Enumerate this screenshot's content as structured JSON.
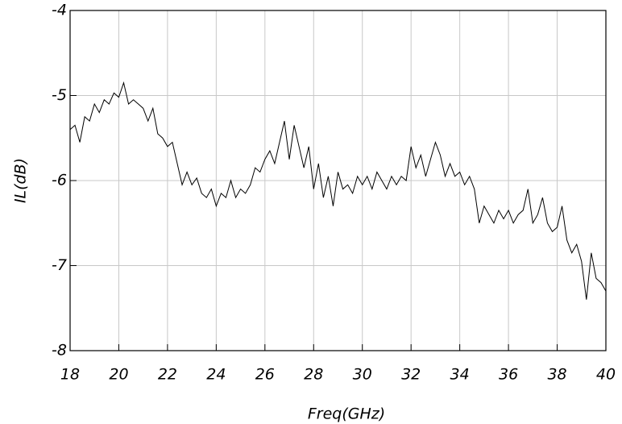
{
  "chart_data": {
    "type": "line",
    "xlabel": "Freq(GHz)",
    "ylabel": "IL(dB)",
    "xlim": [
      18,
      40
    ],
    "xticks": [
      18,
      20,
      22,
      24,
      26,
      28,
      30,
      32,
      34,
      36,
      38,
      40
    ],
    "ylim": [
      -8,
      -4
    ],
    "yticks": [
      -8,
      -7,
      -6,
      -5,
      -4
    ],
    "grid": true,
    "x": [
      18.0,
      18.2,
      18.4,
      18.6,
      18.8,
      19.0,
      19.2,
      19.4,
      19.6,
      19.8,
      20.0,
      20.2,
      20.4,
      20.6,
      20.8,
      21.0,
      21.2,
      21.4,
      21.6,
      21.8,
      22.0,
      22.2,
      22.4,
      22.6,
      22.8,
      23.0,
      23.2,
      23.4,
      23.6,
      23.8,
      24.0,
      24.2,
      24.4,
      24.6,
      24.8,
      25.0,
      25.2,
      25.4,
      25.6,
      25.8,
      26.0,
      26.2,
      26.4,
      26.6,
      26.8,
      27.0,
      27.2,
      27.4,
      27.6,
      27.8,
      28.0,
      28.2,
      28.4,
      28.6,
      28.8,
      29.0,
      29.2,
      29.4,
      29.6,
      29.8,
      30.0,
      30.2,
      30.4,
      30.6,
      30.8,
      31.0,
      31.2,
      31.4,
      31.6,
      31.8,
      32.0,
      32.2,
      32.4,
      32.6,
      32.8,
      33.0,
      33.2,
      33.4,
      33.6,
      33.8,
      34.0,
      34.2,
      34.4,
      34.6,
      34.8,
      35.0,
      35.2,
      35.4,
      35.6,
      35.8,
      36.0,
      36.2,
      36.4,
      36.6,
      36.8,
      37.0,
      37.2,
      37.4,
      37.6,
      37.8,
      38.0,
      38.2,
      38.4,
      38.6,
      38.8,
      39.0,
      39.2,
      39.4,
      39.6,
      39.8,
      40.0
    ],
    "series": [
      {
        "color": "#000000",
        "values": [
          -5.4,
          -5.35,
          -5.55,
          -5.25,
          -5.3,
          -5.1,
          -5.2,
          -5.05,
          -5.1,
          -4.97,
          -5.02,
          -4.85,
          -5.1,
          -5.05,
          -5.1,
          -5.15,
          -5.3,
          -5.15,
          -5.45,
          -5.5,
          -5.6,
          -5.55,
          -5.8,
          -6.05,
          -5.9,
          -6.05,
          -5.97,
          -6.15,
          -6.2,
          -6.1,
          -6.3,
          -6.15,
          -6.2,
          -6.0,
          -6.2,
          -6.1,
          -6.15,
          -6.05,
          -5.85,
          -5.9,
          -5.75,
          -5.65,
          -5.8,
          -5.55,
          -5.3,
          -5.75,
          -5.35,
          -5.6,
          -5.85,
          -5.6,
          -6.1,
          -5.8,
          -6.2,
          -5.95,
          -6.3,
          -5.9,
          -6.1,
          -6.05,
          -6.15,
          -5.95,
          -6.05,
          -5.95,
          -6.1,
          -5.9,
          -6.0,
          -6.1,
          -5.95,
          -6.05,
          -5.95,
          -6.0,
          -5.6,
          -5.85,
          -5.7,
          -5.95,
          -5.75,
          -5.55,
          -5.7,
          -5.95,
          -5.8,
          -5.95,
          -5.9,
          -6.05,
          -5.95,
          -6.1,
          -6.5,
          -6.3,
          -6.4,
          -6.5,
          -6.35,
          -6.45,
          -6.35,
          -6.5,
          -6.4,
          -6.35,
          -6.1,
          -6.5,
          -6.4,
          -6.2,
          -6.5,
          -6.6,
          -6.55,
          -6.3,
          -6.7,
          -6.85,
          -6.75,
          -6.95,
          -7.4,
          -6.85,
          -7.15,
          -7.2,
          -7.3
        ]
      }
    ]
  }
}
